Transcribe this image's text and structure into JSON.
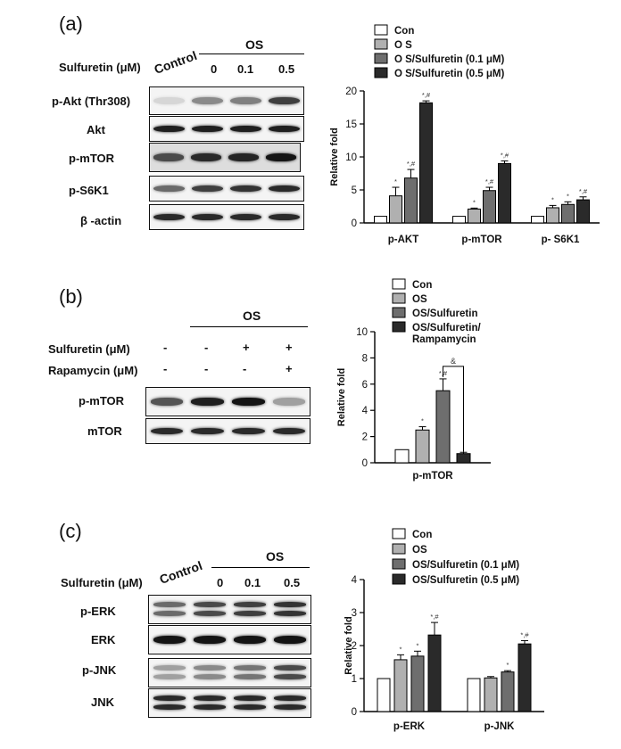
{
  "panel_a": {
    "label": "(a)",
    "treatment_label": "Sulfuretin (μM)",
    "control_label": "Control",
    "os_label": "OS",
    "doses": [
      "0",
      "0.1",
      "0.5"
    ],
    "blots": [
      {
        "label": "p-Akt (Thr308)",
        "intensity": [
          0.1,
          0.45,
          0.5,
          0.8
        ]
      },
      {
        "label": "Akt",
        "intensity": [
          0.95,
          0.95,
          0.95,
          0.95
        ]
      },
      {
        "label": "p-mTOR",
        "intensity": [
          0.75,
          0.9,
          0.92,
          1.0
        ]
      },
      {
        "label": "p-S6K1",
        "intensity": [
          0.6,
          0.8,
          0.85,
          0.9
        ]
      },
      {
        "label": "β -actin",
        "intensity": [
          0.9,
          0.9,
          0.9,
          0.9
        ]
      }
    ]
  },
  "panel_b": {
    "label": "(b)",
    "os_label": "OS",
    "rows": [
      {
        "label": "Sulfuretin (μM)",
        "signs": [
          "-",
          "-",
          "+",
          "+"
        ]
      },
      {
        "label": "Rapamycin (μM)",
        "signs": [
          "-",
          "-",
          "-",
          "+"
        ]
      }
    ],
    "blots": [
      {
        "label": "p-mTOR",
        "intensity": [
          0.7,
          0.95,
          1.0,
          0.35
        ]
      },
      {
        "label": "mTOR",
        "intensity": [
          0.9,
          0.9,
          0.9,
          0.9
        ]
      }
    ]
  },
  "panel_c": {
    "label": "(c)",
    "treatment_label": "Sulfuretin (μM)",
    "control_label": "Control",
    "os_label": "OS",
    "doses": [
      "0",
      "0.1",
      "0.5"
    ],
    "blots": [
      {
        "label": "p-ERK",
        "double": true,
        "intensity": [
          0.6,
          0.75,
          0.8,
          0.85
        ]
      },
      {
        "label": "ERK",
        "double": false,
        "intensity": [
          1.0,
          1.0,
          1.0,
          1.0
        ]
      },
      {
        "label": "p-JNK",
        "double": true,
        "intensity": [
          0.35,
          0.45,
          0.55,
          0.75
        ]
      },
      {
        "label": "JNK",
        "double": true,
        "intensity": [
          0.9,
          0.9,
          0.9,
          0.9
        ]
      }
    ]
  },
  "chart_data": [
    {
      "type": "bar",
      "ylabel": "Relative fold",
      "ylim": [
        0,
        20
      ],
      "yticks": [
        0,
        5,
        10,
        15,
        20
      ],
      "categories": [
        "p-AKT",
        "p-mTOR",
        "p- S6K1"
      ],
      "series": [
        {
          "name": "Con",
          "color": "#ffffff",
          "values": [
            1.0,
            1.0,
            1.0
          ],
          "errors": [
            0,
            0,
            0
          ],
          "marks": [
            "",
            "",
            ""
          ]
        },
        {
          "name": "O S",
          "color": "#b0b0b0",
          "values": [
            4.1,
            2.1,
            2.3
          ],
          "errors": [
            1.3,
            0.15,
            0.35
          ],
          "marks": [
            "*",
            "*",
            "*"
          ]
        },
        {
          "name": "O S/Sulfuretin (0.1 μM)",
          "color": "#6e6e6e",
          "values": [
            6.8,
            4.9,
            2.8
          ],
          "errors": [
            1.3,
            0.5,
            0.4
          ],
          "marks": [
            "*,#",
            "*,#",
            "*"
          ]
        },
        {
          "name": "O S/Sulfuretin (0.5 μM)",
          "color": "#2a2a2a",
          "values": [
            18.2,
            9.0,
            3.5
          ],
          "errors": [
            0.3,
            0.4,
            0.45
          ],
          "marks": [
            "*,#",
            "*,#",
            "*,#"
          ]
        }
      ]
    },
    {
      "type": "bar",
      "ylabel": "Relative fold",
      "ylim": [
        0,
        10
      ],
      "yticks": [
        0,
        2,
        4,
        6,
        8,
        10
      ],
      "categories": [
        "p-mTOR"
      ],
      "series": [
        {
          "name": "Con",
          "color": "#ffffff",
          "values": [
            1.0
          ],
          "errors": [
            0
          ],
          "marks": [
            ""
          ]
        },
        {
          "name": "OS",
          "color": "#b0b0b0",
          "values": [
            2.5
          ],
          "errors": [
            0.25
          ],
          "marks": [
            "*"
          ]
        },
        {
          "name": "OS/Sulfuretin",
          "color": "#6e6e6e",
          "values": [
            5.5
          ],
          "errors": [
            0.9
          ],
          "marks": [
            "*,#"
          ]
        },
        {
          "name": "OS/Sulfuretin/\nRampamycin",
          "color": "#2a2a2a",
          "values": [
            0.7
          ],
          "errors": [
            0.1
          ],
          "marks": [
            ""
          ]
        }
      ],
      "bracket_mark": "&"
    },
    {
      "type": "bar",
      "ylabel": "Relative fold",
      "ylim": [
        0,
        4
      ],
      "yticks": [
        0,
        1,
        2,
        3,
        4
      ],
      "categories": [
        "p-ERK",
        "p-JNK"
      ],
      "series": [
        {
          "name": "Con",
          "color": "#ffffff",
          "values": [
            1.0,
            1.0
          ],
          "errors": [
            0,
            0
          ],
          "marks": [
            "",
            ""
          ]
        },
        {
          "name": "OS",
          "color": "#b0b0b0",
          "values": [
            1.57,
            1.02
          ],
          "errors": [
            0.15,
            0.04
          ],
          "marks": [
            "*",
            ""
          ]
        },
        {
          "name": "OS/Sulfuretin (0.1 μM)",
          "color": "#6e6e6e",
          "values": [
            1.68,
            1.2
          ],
          "errors": [
            0.15,
            0.04
          ],
          "marks": [
            "*",
            "*"
          ]
        },
        {
          "name": "OS/Sulfuretin (0.5 μM)",
          "color": "#2a2a2a",
          "values": [
            2.32,
            2.05
          ],
          "errors": [
            0.38,
            0.1
          ],
          "marks": [
            "*,#",
            "*,#"
          ]
        }
      ]
    }
  ]
}
